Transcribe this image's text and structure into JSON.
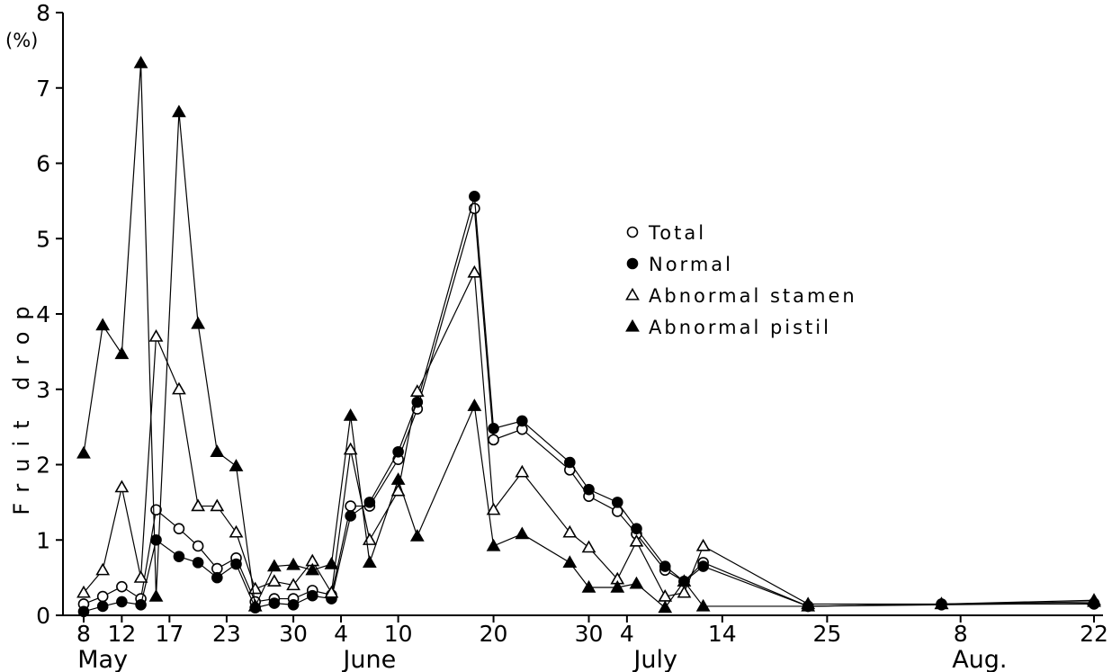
{
  "chart_data": {
    "type": "line",
    "ylabel": "Fruit drop",
    "yunit": "(%)",
    "ylim": [
      0,
      8
    ],
    "yticks": [
      "0",
      "1",
      "2",
      "3",
      "4",
      "5",
      "6",
      "7",
      "8"
    ],
    "xticks": [
      {
        "day": 0,
        "label": "8"
      },
      {
        "day": 4,
        "label": "12"
      },
      {
        "day": 9,
        "label": "17"
      },
      {
        "day": 15,
        "label": "23"
      },
      {
        "day": 22,
        "label": "30"
      },
      {
        "day": 27,
        "label": "4"
      },
      {
        "day": 33,
        "label": "10"
      },
      {
        "day": 43,
        "label": "20"
      },
      {
        "day": 53,
        "label": "30"
      },
      {
        "day": 57,
        "label": "4"
      },
      {
        "day": 67,
        "label": "14"
      },
      {
        "day": 78,
        "label": "25"
      },
      {
        "day": 92,
        "label": "8"
      },
      {
        "day": 106,
        "label": "22"
      }
    ],
    "months": [
      {
        "day": 2,
        "label": "May"
      },
      {
        "day": 30,
        "label": "June"
      },
      {
        "day": 60,
        "label": "July"
      },
      {
        "day": 94,
        "label": "Aug."
      }
    ],
    "series": [
      {
        "name": "Total",
        "marker": "open-circle",
        "x": [
          0,
          2,
          4,
          6,
          7.6,
          10,
          12,
          14,
          16,
          18,
          20,
          22,
          24,
          26,
          28,
          30,
          33,
          35,
          41,
          43,
          46,
          51,
          53,
          56,
          58,
          61,
          63,
          65,
          76,
          90,
          106
        ],
        "y": [
          0.15,
          0.25,
          0.38,
          0.22,
          1.4,
          1.15,
          0.92,
          0.62,
          0.76,
          0.18,
          0.22,
          0.22,
          0.33,
          0.27,
          1.45,
          1.45,
          2.07,
          2.74,
          5.4,
          2.33,
          2.47,
          1.93,
          1.58,
          1.38,
          1.08,
          0.6,
          0.45,
          0.7,
          0.12,
          0.15,
          0.15
        ]
      },
      {
        "name": "Normal",
        "marker": "filled-circle",
        "x": [
          0,
          2,
          4,
          6,
          7.6,
          10,
          12,
          14,
          16,
          18,
          20,
          22,
          24,
          26,
          28,
          30,
          33,
          35,
          41,
          43,
          46,
          51,
          53,
          56,
          58,
          61,
          63,
          65,
          76,
          90,
          106
        ],
        "y": [
          0.05,
          0.12,
          0.18,
          0.14,
          1.0,
          0.78,
          0.7,
          0.5,
          0.68,
          0.1,
          0.16,
          0.14,
          0.26,
          0.22,
          1.32,
          1.5,
          2.17,
          2.83,
          5.56,
          2.48,
          2.58,
          2.03,
          1.67,
          1.5,
          1.15,
          0.65,
          0.45,
          0.65,
          0.12,
          0.14,
          0.16
        ]
      },
      {
        "name": "Abnormal stamen",
        "marker": "open-triangle",
        "x": [
          0,
          2,
          4,
          6,
          7.6,
          10,
          12,
          14,
          16,
          18,
          20,
          22,
          24,
          26,
          28,
          30,
          33,
          35,
          41,
          43,
          46,
          51,
          53,
          56,
          58,
          61,
          63,
          65,
          76,
          90,
          106
        ],
        "y": [
          0.3,
          0.6,
          1.7,
          0.5,
          3.7,
          3.0,
          1.45,
          1.45,
          1.1,
          0.35,
          0.45,
          0.4,
          0.72,
          0.3,
          2.2,
          1.0,
          1.65,
          2.97,
          4.55,
          1.4,
          1.9,
          1.1,
          0.9,
          0.48,
          0.98,
          0.25,
          0.3,
          0.92,
          0.15,
          0.15,
          0.2
        ]
      },
      {
        "name": "Abnormal pistil",
        "marker": "filled-triangle",
        "x": [
          0,
          2,
          4,
          6,
          7.6,
          10,
          12,
          14,
          16,
          18,
          20,
          22,
          24,
          26,
          28,
          30,
          33,
          35,
          41,
          43,
          46,
          51,
          53,
          56,
          58,
          61,
          63,
          65,
          76,
          90,
          106
        ],
        "y": [
          2.15,
          3.85,
          3.47,
          7.33,
          0.25,
          6.68,
          3.87,
          2.17,
          1.98,
          0.12,
          0.65,
          0.67,
          0.6,
          0.68,
          2.65,
          0.7,
          1.8,
          1.05,
          2.78,
          0.92,
          1.08,
          0.7,
          0.37,
          0.37,
          0.42,
          0.1,
          0.45,
          0.12,
          0.12,
          0.15,
          0.18
        ]
      }
    ],
    "legend": [
      "Total",
      "Normal",
      "Abnormal stamen",
      "Abnormal pistil"
    ]
  }
}
